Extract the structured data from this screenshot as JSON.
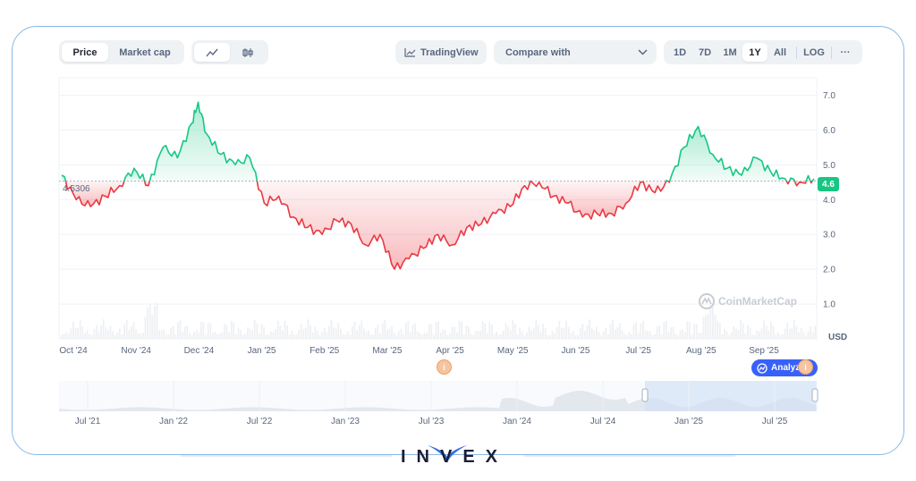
{
  "toolbar": {
    "price_label": "Price",
    "marketcap_label": "Market cap",
    "tradingview_label": "TradingView",
    "compare_label": "Compare with",
    "ranges": [
      "1D",
      "7D",
      "1M",
      "1Y",
      "All"
    ],
    "active_range": "1Y",
    "log_label": "LOG",
    "more_label": "···"
  },
  "chart_data": {
    "type": "area",
    "title": "",
    "xlabel": "",
    "ylabel": "USD",
    "ylim": [
      0,
      7.5
    ],
    "y_ticks": [
      "7.0",
      "6.0",
      "5.0",
      "4.0",
      "3.0",
      "2.0",
      "1.0"
    ],
    "x_tick_labels": [
      "Oct '24",
      "Nov '24",
      "Dec '24",
      "Jan '25",
      "Feb '25",
      "Mar '25",
      "Apr '25",
      "May '25",
      "Jun '25",
      "Jul '25",
      "Aug '25",
      "Sep '25"
    ],
    "reference_value": 4.5306,
    "reference_label": "4.5306",
    "current_value": 4.6,
    "current_label": "4.6",
    "above_color": "#16c784",
    "below_color": "#ea3943",
    "series": [
      {
        "x": [
          "2024-10-01",
          "2024-10-08",
          "2024-10-15",
          "2024-10-22",
          "2024-10-29",
          "2024-11-05",
          "2024-11-12",
          "2024-11-19",
          "2024-11-26",
          "2024-12-03",
          "2024-12-06",
          "2024-12-10",
          "2024-12-17",
          "2024-12-24",
          "2024-12-31",
          "2025-01-07",
          "2025-01-14",
          "2025-01-21",
          "2025-01-28",
          "2025-02-04",
          "2025-02-11",
          "2025-02-18",
          "2025-02-25",
          "2025-03-04",
          "2025-03-11",
          "2025-03-18",
          "2025-03-25",
          "2025-04-01",
          "2025-04-08",
          "2025-04-15",
          "2025-04-22",
          "2025-04-29",
          "2025-05-06",
          "2025-05-13",
          "2025-05-20",
          "2025-05-27",
          "2025-06-03",
          "2025-06-10",
          "2025-06-17",
          "2025-06-24",
          "2025-07-01",
          "2025-07-08",
          "2025-07-15",
          "2025-07-22",
          "2025-07-29",
          "2025-08-05",
          "2025-08-12",
          "2025-08-19",
          "2025-08-26",
          "2025-09-02",
          "2025-09-09",
          "2025-09-16",
          "2025-09-23",
          "2025-09-30"
        ],
        "values": [
          4.7,
          4.0,
          3.8,
          4.1,
          4.4,
          4.9,
          4.4,
          5.5,
          5.2,
          6.2,
          6.8,
          5.9,
          5.3,
          5.0,
          5.2,
          3.9,
          4.1,
          3.5,
          3.2,
          3.0,
          3.4,
          3.3,
          2.7,
          3.0,
          2.0,
          2.3,
          2.6,
          3.0,
          2.7,
          3.2,
          3.3,
          3.6,
          3.8,
          4.4,
          4.5,
          4.1,
          3.9,
          3.5,
          3.6,
          3.6,
          3.9,
          4.5,
          4.2,
          4.5,
          5.5,
          6.1,
          5.3,
          4.9,
          4.7,
          5.2,
          4.8,
          4.6,
          4.5,
          4.6
        ]
      }
    ],
    "overview": {
      "x_tick_labels": [
        "Jul '21",
        "Jan '22",
        "Jul '22",
        "Jan '23",
        "Jul '23",
        "Jan '24",
        "Jul '24",
        "Jan '25",
        "Jul '25"
      ]
    }
  },
  "analyze_label": "Analyze",
  "watermark": "CoinMarketCap",
  "brand": "INVEX"
}
